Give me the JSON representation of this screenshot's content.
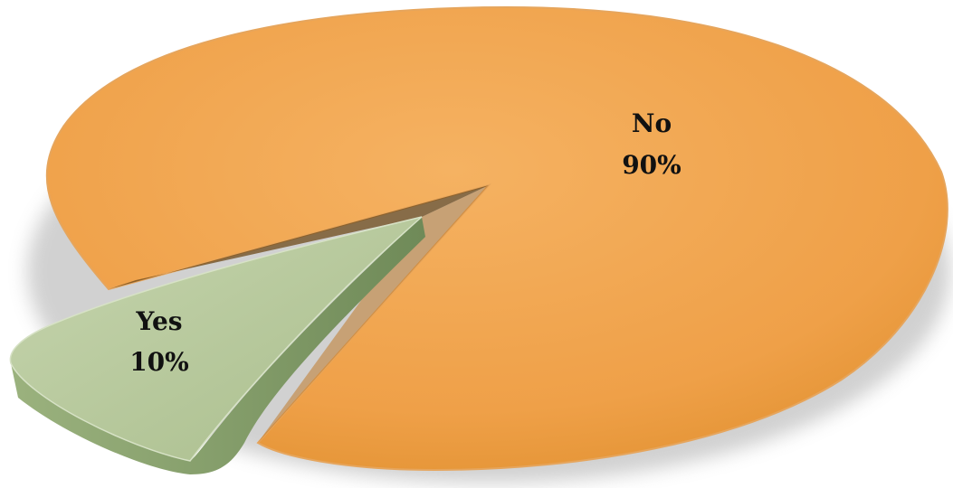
{
  "chart_data": {
    "type": "pie",
    "title": "",
    "categories": [
      "No",
      "Yes"
    ],
    "values": [
      90,
      10
    ],
    "labels": [
      {
        "name": "No",
        "percent": "90%"
      },
      {
        "name": "Yes",
        "percent": "10%"
      }
    ],
    "colors": {
      "No": "#F0A24A",
      "Yes": "#B9CC9E",
      "Yes_edge": "#7F9A66",
      "No_edge": "#D4822A",
      "shadow": "#6E4A1A"
    },
    "style": "3d-exploded",
    "legend": "none"
  }
}
